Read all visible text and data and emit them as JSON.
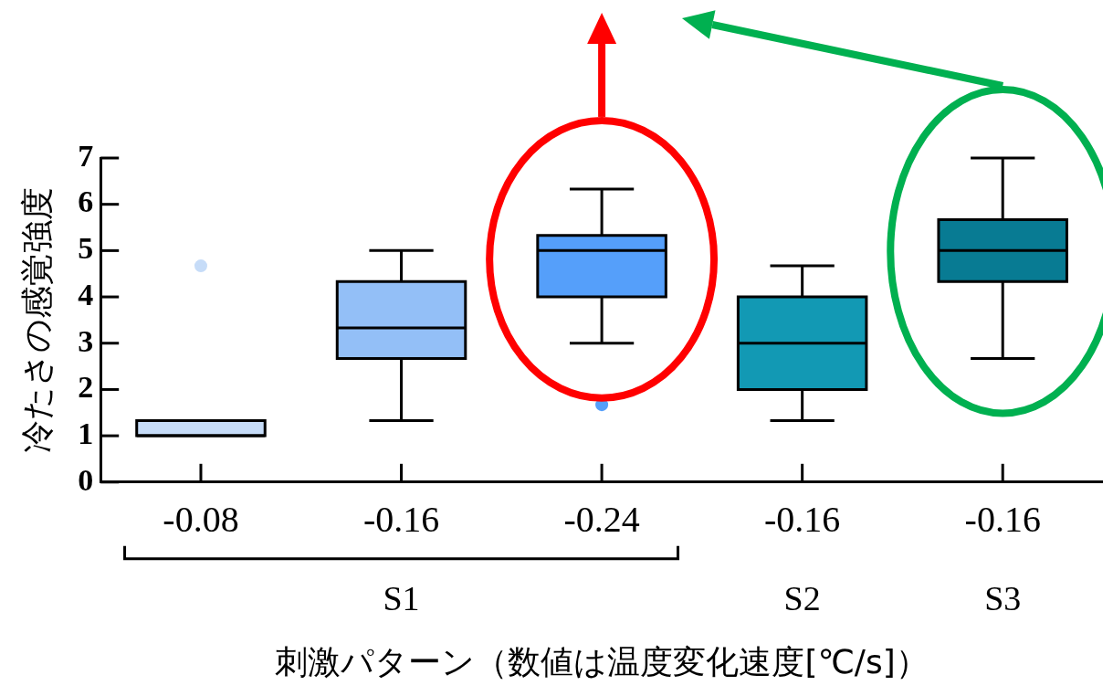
{
  "chart_data": {
    "type": "box",
    "xlabel": "刺激パターン（数値は温度変化速度[℃/s]）",
    "ylabel": "冷たさの感覚強度",
    "categories": [
      "-0.08",
      "-0.16",
      "-0.24",
      "-0.16",
      "-0.16"
    ],
    "colors": [
      "#c6dcf8",
      "#93bff7",
      "#559ffa",
      "#1299b4",
      "#087b93"
    ],
    "boxes": [
      {
        "low": 1,
        "q1": 1,
        "median": 1,
        "q3": 1.33,
        "high": 1.33,
        "outliers": [
          4.67
        ]
      },
      {
        "low": 1.33,
        "q1": 2.67,
        "median": 3.33,
        "q3": 4.33,
        "high": 5
      },
      {
        "low": 3,
        "q1": 4,
        "median": 5,
        "q3": 5.33,
        "high": 6.33,
        "outliers": [
          1.67
        ]
      },
      {
        "low": 1.33,
        "q1": 2,
        "median": 3,
        "q3": 4,
        "high": 4.67
      },
      {
        "low": 2.67,
        "q1": 4.33,
        "median": 5,
        "q3": 5.67,
        "high": 7
      }
    ],
    "ylim": [
      0,
      7
    ],
    "yticks": [
      0,
      1,
      2,
      3,
      4,
      5,
      6,
      7
    ],
    "grid": false,
    "annotations": [
      "S1",
      "S2",
      "S3"
    ]
  }
}
